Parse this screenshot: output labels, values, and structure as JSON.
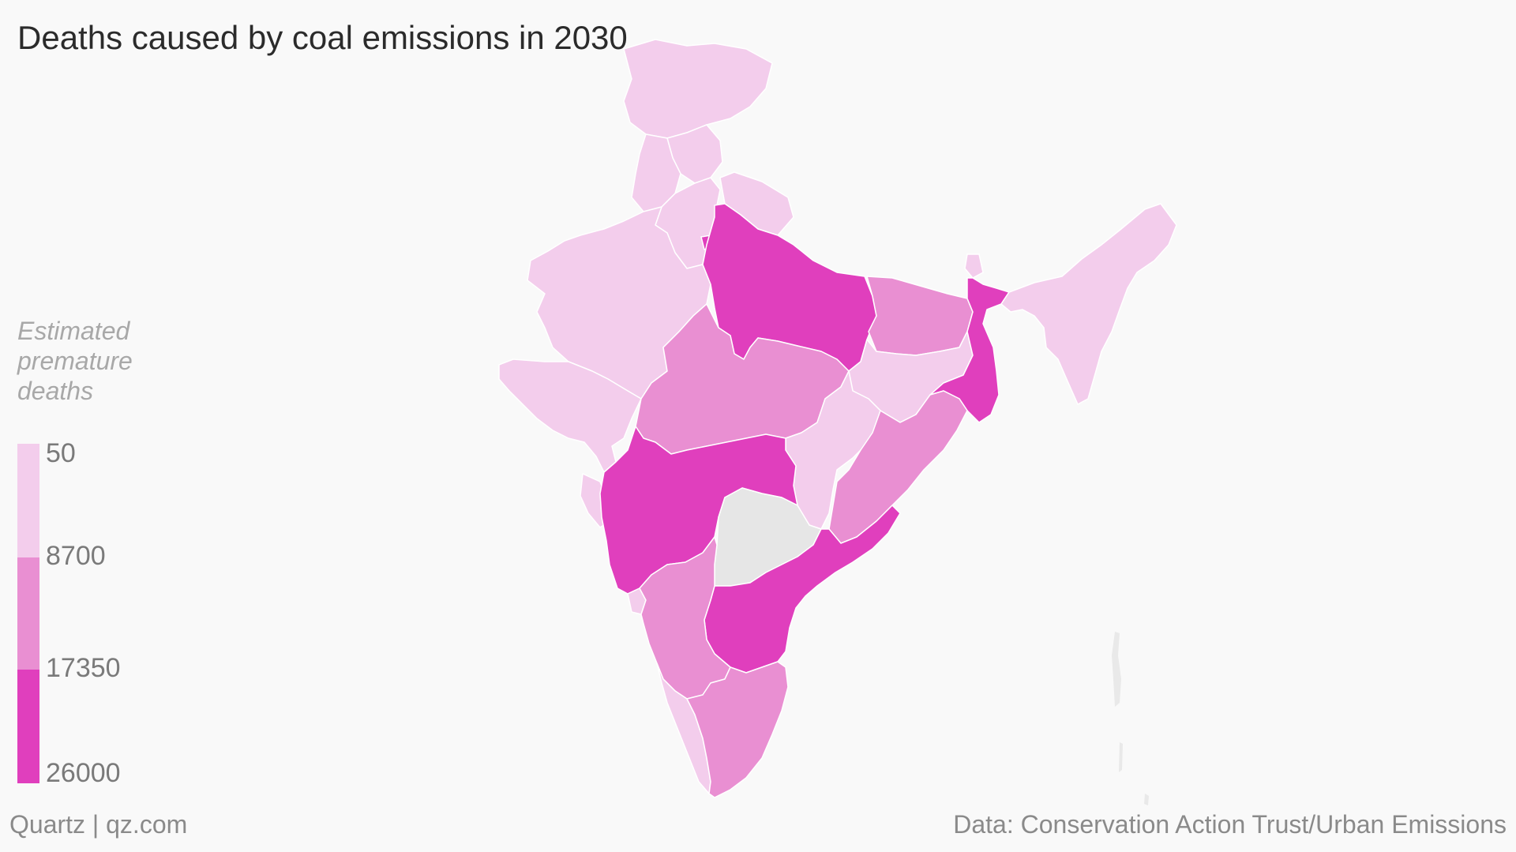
{
  "title": "Deaths caused by coal emissions in 2030",
  "legend": {
    "title_lines": [
      "Estimated",
      "premature",
      "deaths"
    ],
    "breaks": [
      "50",
      "8700",
      "17350",
      "26000"
    ],
    "colors": [
      "#f3cdec",
      "#e98fd2",
      "#e03fbd"
    ],
    "no_data_color": "#e6e6e6"
  },
  "footer": {
    "source_brand": "Quartz | qz.com",
    "data_source": "Data: Conservation Action Trust/Urban Emissions"
  },
  "regions": [
    {
      "name": "Jammu and Kashmir",
      "class": 0
    },
    {
      "name": "Himachal Pradesh",
      "class": 0
    },
    {
      "name": "Punjab",
      "class": 0
    },
    {
      "name": "Uttarakhand",
      "class": 0
    },
    {
      "name": "Haryana",
      "class": 0
    },
    {
      "name": "Rajasthan",
      "class": 0
    },
    {
      "name": "Gujarat",
      "class": 0
    },
    {
      "name": "Uttar Pradesh",
      "class": 2
    },
    {
      "name": "Madhya Pradesh",
      "class": 1
    },
    {
      "name": "Bihar",
      "class": 1
    },
    {
      "name": "Jharkhand",
      "class": 0
    },
    {
      "name": "West Bengal",
      "class": 2
    },
    {
      "name": "Sikkim",
      "class": 0
    },
    {
      "name": "Chhattisgarh",
      "class": 0
    },
    {
      "name": "Odisha",
      "class": 1
    },
    {
      "name": "Maharashtra",
      "class": 2
    },
    {
      "name": "Telangana",
      "class": -1
    },
    {
      "name": "Andhra Pradesh",
      "class": 2
    },
    {
      "name": "Karnataka",
      "class": 1
    },
    {
      "name": "Goa",
      "class": 0
    },
    {
      "name": "Kerala",
      "class": 0
    },
    {
      "name": "Tamil Nadu",
      "class": 1
    },
    {
      "name": "Northeast",
      "class": 0
    },
    {
      "name": "Delhi",
      "class": 2
    }
  ]
}
